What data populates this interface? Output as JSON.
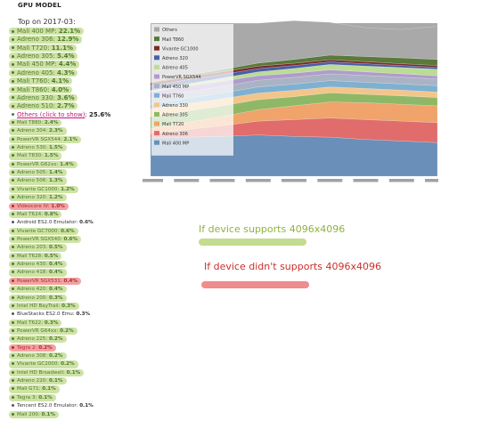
{
  "header": {
    "title": "GPU MODEL",
    "subtitle": "Top on 2017-03:"
  },
  "gpu_list": [
    {
      "name": "Mali 400 MP",
      "pct": "22.1%",
      "style": "green",
      "top": true
    },
    {
      "name": "Adreno 306",
      "pct": "12.9%",
      "style": "green",
      "top": true
    },
    {
      "name": "Mali T720",
      "pct": "11.1%",
      "style": "green",
      "top": true
    },
    {
      "name": "Adreno 305",
      "pct": "5.4%",
      "style": "green",
      "top": true
    },
    {
      "name": "Mali 450 MP",
      "pct": "4.4%",
      "style": "green",
      "top": true
    },
    {
      "name": "Adreno 405",
      "pct": "4.3%",
      "style": "green",
      "top": true
    },
    {
      "name": "Mali T760",
      "pct": "4.1%",
      "style": "green",
      "top": true
    },
    {
      "name": "Mali T860",
      "pct": "4.0%",
      "style": "green",
      "top": true
    },
    {
      "name": "Adreno 330",
      "pct": "3.6%",
      "style": "green",
      "top": true
    },
    {
      "name": "Adreno 510",
      "pct": "2.7%",
      "style": "green",
      "top": true
    },
    {
      "name": "Others (click to show)",
      "pct": "25.6%",
      "style": "link",
      "top": true
    },
    {
      "name": "Mali T880",
      "pct": "2.4%",
      "style": "green"
    },
    {
      "name": "Adreno 304",
      "pct": "2.3%",
      "style": "green"
    },
    {
      "name": "PowerVR SGX544",
      "pct": "2.1%",
      "style": "green"
    },
    {
      "name": "Adreno 530",
      "pct": "1.5%",
      "style": "green"
    },
    {
      "name": "Mali T830",
      "pct": "1.5%",
      "style": "green"
    },
    {
      "name": "PowerVR G62xx",
      "pct": "1.4%",
      "style": "green"
    },
    {
      "name": "Adreno 505",
      "pct": "1.4%",
      "style": "green"
    },
    {
      "name": "Adreno 506",
      "pct": "1.3%",
      "style": "green"
    },
    {
      "name": "Vivante GC1000",
      "pct": "1.2%",
      "style": "green"
    },
    {
      "name": "Adreno 320",
      "pct": "1.2%",
      "style": "green"
    },
    {
      "name": "Videocore IV",
      "pct": "1.0%",
      "style": "red"
    },
    {
      "name": "Mali T624",
      "pct": "0.8%",
      "style": "green"
    },
    {
      "name": "Android ES2.0 Emulator:",
      "pct": "0.6%",
      "style": "plain"
    },
    {
      "name": "Vivante GC7000",
      "pct": "0.6%",
      "style": "green"
    },
    {
      "name": "PowerVR SGX540",
      "pct": "0.6%",
      "style": "green"
    },
    {
      "name": "Adreno 203",
      "pct": "0.5%",
      "style": "green"
    },
    {
      "name": "Mali T628",
      "pct": "0.5%",
      "style": "green"
    },
    {
      "name": "Adreno 430",
      "pct": "0.4%",
      "style": "green"
    },
    {
      "name": "Adreno 418",
      "pct": "0.4%",
      "style": "green"
    },
    {
      "name": "PowerVR SGX531",
      "pct": "0.4%",
      "style": "red"
    },
    {
      "name": "Adreno 420",
      "pct": "0.4%",
      "style": "green"
    },
    {
      "name": "Adreno 200",
      "pct": "0.3%",
      "style": "green"
    },
    {
      "name": "Intel HD BayTrail",
      "pct": "0.3%",
      "style": "green"
    },
    {
      "name": "BlueStacks ES2.0 Emu:",
      "pct": "0.3%",
      "style": "plain"
    },
    {
      "name": "Mali T622",
      "pct": "0.3%",
      "style": "green"
    },
    {
      "name": "PowerVR G64xx",
      "pct": "0.2%",
      "style": "green"
    },
    {
      "name": "Adreno 225",
      "pct": "0.2%",
      "style": "green"
    },
    {
      "name": "Tegra 2",
      "pct": "0.2%",
      "style": "red"
    },
    {
      "name": "Adreno 308",
      "pct": "0.2%",
      "style": "green"
    },
    {
      "name": "Vivante GC2000",
      "pct": "0.2%",
      "style": "green"
    },
    {
      "name": "Intel HD Broadwell",
      "pct": "0.1%",
      "style": "green"
    },
    {
      "name": "Adreno 220",
      "pct": "0.1%",
      "style": "green"
    },
    {
      "name": "Mali G71",
      "pct": "0.1%",
      "style": "green"
    },
    {
      "name": "Tegra 3",
      "pct": "0.1%",
      "style": "green"
    },
    {
      "name": "Tencent ES2.0 Emulator:",
      "pct": "0.1%",
      "style": "plain"
    },
    {
      "name": "Mali 200",
      "pct": "0.1%",
      "style": "green"
    }
  ],
  "chart_data": {
    "type": "area",
    "title": "",
    "legend_position": "top-left",
    "x_tick_count": 9,
    "n_points": 9,
    "series": [
      {
        "name": "Mali 400 MP",
        "color": "#6a8fb8",
        "values": [
          25,
          25.5,
          26,
          27,
          26,
          25.5,
          24,
          23,
          22
        ]
      },
      {
        "name": "Adreno 306",
        "color": "#e06c6c",
        "values": [
          3,
          5,
          7,
          9,
          11,
          12.5,
          13,
          13,
          13
        ]
      },
      {
        "name": "Mali T720",
        "color": "#f0a36a",
        "values": [
          3,
          4.5,
          6,
          7.5,
          9,
          10.5,
          11,
          11,
          11
        ]
      },
      {
        "name": "Adreno 305",
        "color": "#8fb866",
        "values": [
          8,
          7.5,
          7,
          6.5,
          6,
          6,
          5.5,
          5.5,
          5.4
        ]
      },
      {
        "name": "Adreno 330",
        "color": "#f4c58a",
        "values": [
          5,
          4.8,
          4.6,
          4.3,
          4.1,
          3.9,
          3.8,
          3.7,
          3.6
        ]
      },
      {
        "name": "Mali T760",
        "color": "#7fb0d0",
        "values": [
          3,
          3.5,
          3.8,
          4,
          4.1,
          4.1,
          4.1,
          4.1,
          4.1
        ]
      },
      {
        "name": "Mali 450 MP",
        "color": "#aab3c4",
        "values": [
          4,
          4.2,
          4.3,
          4.4,
          4.4,
          4.4,
          4.4,
          4.4,
          4.4
        ]
      },
      {
        "name": "PowerVR SGX544",
        "color": "#b09ccc",
        "values": [
          4,
          3.7,
          3.4,
          3,
          2.8,
          2.6,
          2.4,
          2.2,
          2.1
        ]
      },
      {
        "name": "Adreno 405",
        "color": "#bcdc96",
        "values": [
          1,
          1.5,
          2,
          2.5,
          3,
          3.5,
          3.8,
          4.1,
          4.3
        ]
      },
      {
        "name": "Adreno 320",
        "color": "#4a5ea8",
        "values": [
          3,
          2.7,
          2.4,
          2.1,
          1.9,
          1.7,
          1.5,
          1.3,
          1.2
        ]
      },
      {
        "name": "Vivante GC1000",
        "color": "#7a2b2b",
        "values": [
          2,
          1.8,
          1.7,
          1.6,
          1.5,
          1.4,
          1.3,
          1.2,
          1.2
        ]
      },
      {
        "name": "Mali T860",
        "color": "#597a3a",
        "values": [
          0.5,
          1,
          1.5,
          2,
          2.5,
          3,
          3.4,
          3.8,
          4
        ]
      },
      {
        "name": "Others",
        "color": "#a9a9a9",
        "values": [
          38.5,
          34.3,
          30.3,
          26.1,
          25.3,
          21.4,
          18.8,
          18.6,
          21.6
        ]
      }
    ]
  },
  "notes": {
    "good_text": "If device supports 4096x4096",
    "bad_text": "If device didn't supports 4096x4096",
    "good_color": "#c3dc8f",
    "bad_color": "#ef8c8c"
  }
}
